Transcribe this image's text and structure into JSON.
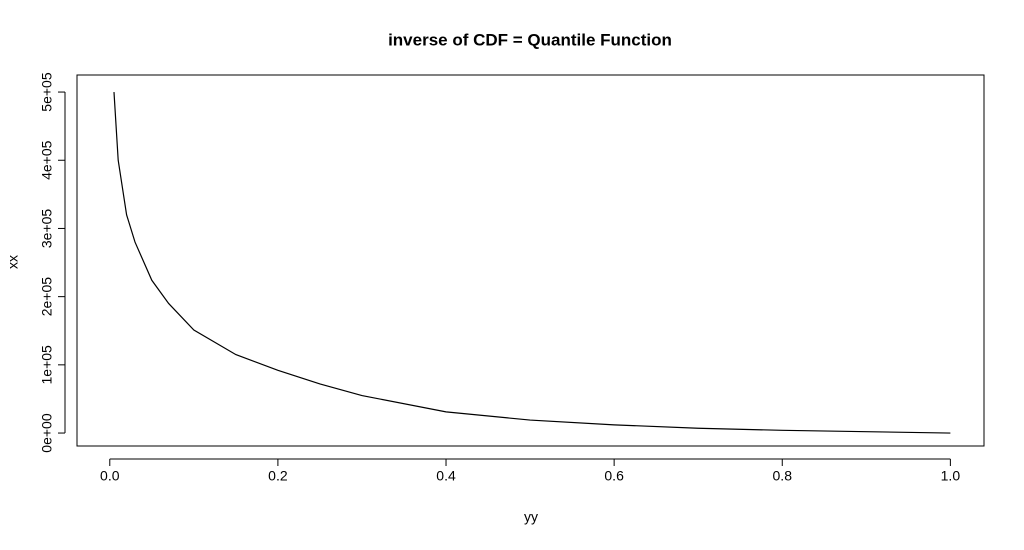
{
  "chart_data": {
    "type": "line",
    "title": "inverse of CDF = Quantile Function",
    "x_label": "yy",
    "y_label": "xx",
    "x": [
      0.005,
      0.01,
      0.02,
      0.03,
      0.05,
      0.07,
      0.1,
      0.15,
      0.2,
      0.25,
      0.3,
      0.4,
      0.5,
      0.6,
      0.7,
      0.8,
      0.9,
      1.0
    ],
    "series": [
      {
        "color": "#000000",
        "values": [
          500000,
          400000,
          320000,
          280000,
          224000,
          190000,
          151000,
          115000,
          92000,
          72000,
          55000,
          31000,
          19000,
          12000,
          7000,
          4000,
          2000,
          0
        ]
      }
    ],
    "xlim": [
      -0.039,
      1.04
    ],
    "ylim": [
      -19000,
      525000
    ],
    "xticks": [
      {
        "value": 0,
        "label": "0.0"
      },
      0.2,
      0.4,
      0.6,
      0.8,
      {
        "value": 1,
        "label": "1.0"
      }
    ],
    "yticks": [
      {
        "value": 0,
        "label": "0e+00"
      },
      {
        "value": 100000,
        "label": "1e+05"
      },
      {
        "value": 200000,
        "label": "2e+05"
      },
      {
        "value": 300000,
        "label": "3e+05"
      },
      {
        "value": 400000,
        "label": "4e+05"
      },
      {
        "value": 500000,
        "label": "5e+05"
      }
    ],
    "grid": false
  }
}
